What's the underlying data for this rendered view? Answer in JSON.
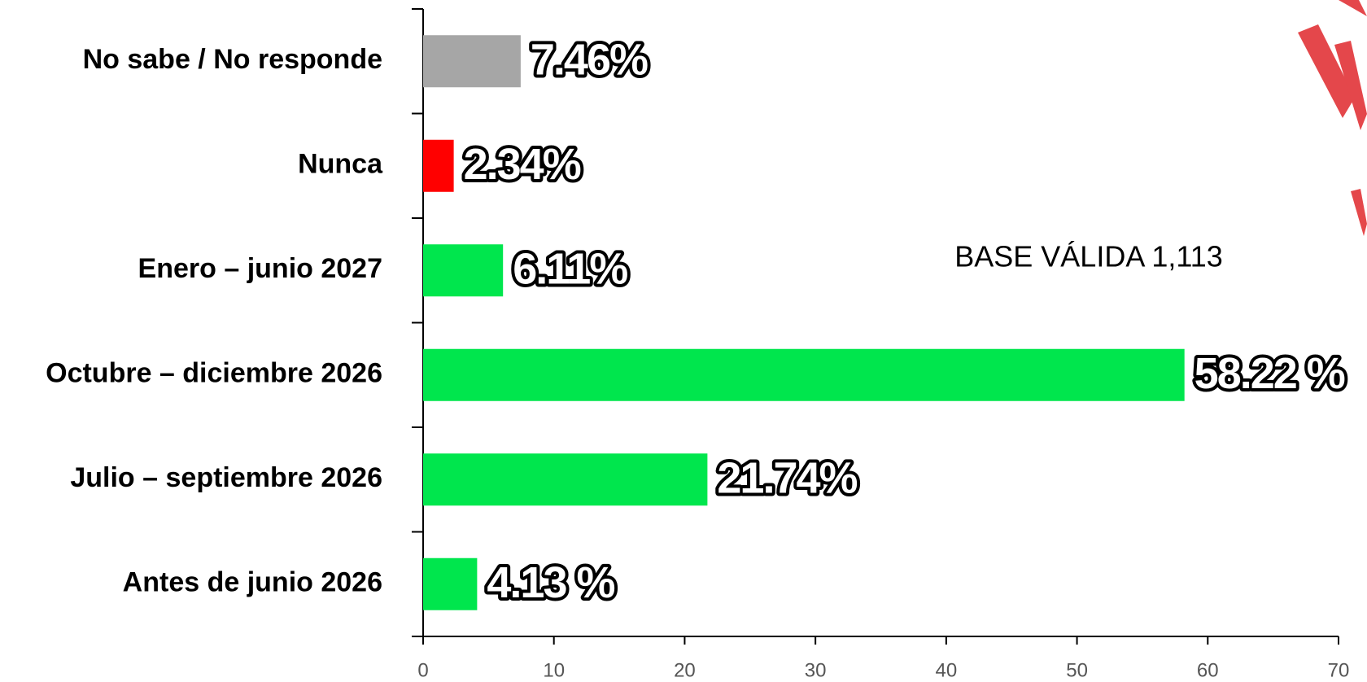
{
  "chart_data": {
    "type": "bar",
    "orientation": "horizontal",
    "categories": [
      "No sabe / No responde",
      "Nunca",
      "Enero – junio 2027",
      "Octubre – diciembre 2026",
      "Julio – septiembre 2026",
      "Antes de junio 2026"
    ],
    "values": [
      7.46,
      2.34,
      6.11,
      58.22,
      21.74,
      4.13
    ],
    "value_labels": [
      "7.46%",
      "2.34%",
      "6.11%",
      "58.22 %",
      "21.74%",
      "4.13 %"
    ],
    "colors": [
      "#a6a6a6",
      "#ff0000",
      "#00e64d",
      "#00e64d",
      "#00e64d",
      "#00e64d"
    ],
    "xlim": [
      0,
      70
    ],
    "xticks": [
      0,
      10,
      20,
      30,
      40,
      50,
      60,
      70
    ],
    "annotation": "BASE VÁLIDA 1,113"
  }
}
